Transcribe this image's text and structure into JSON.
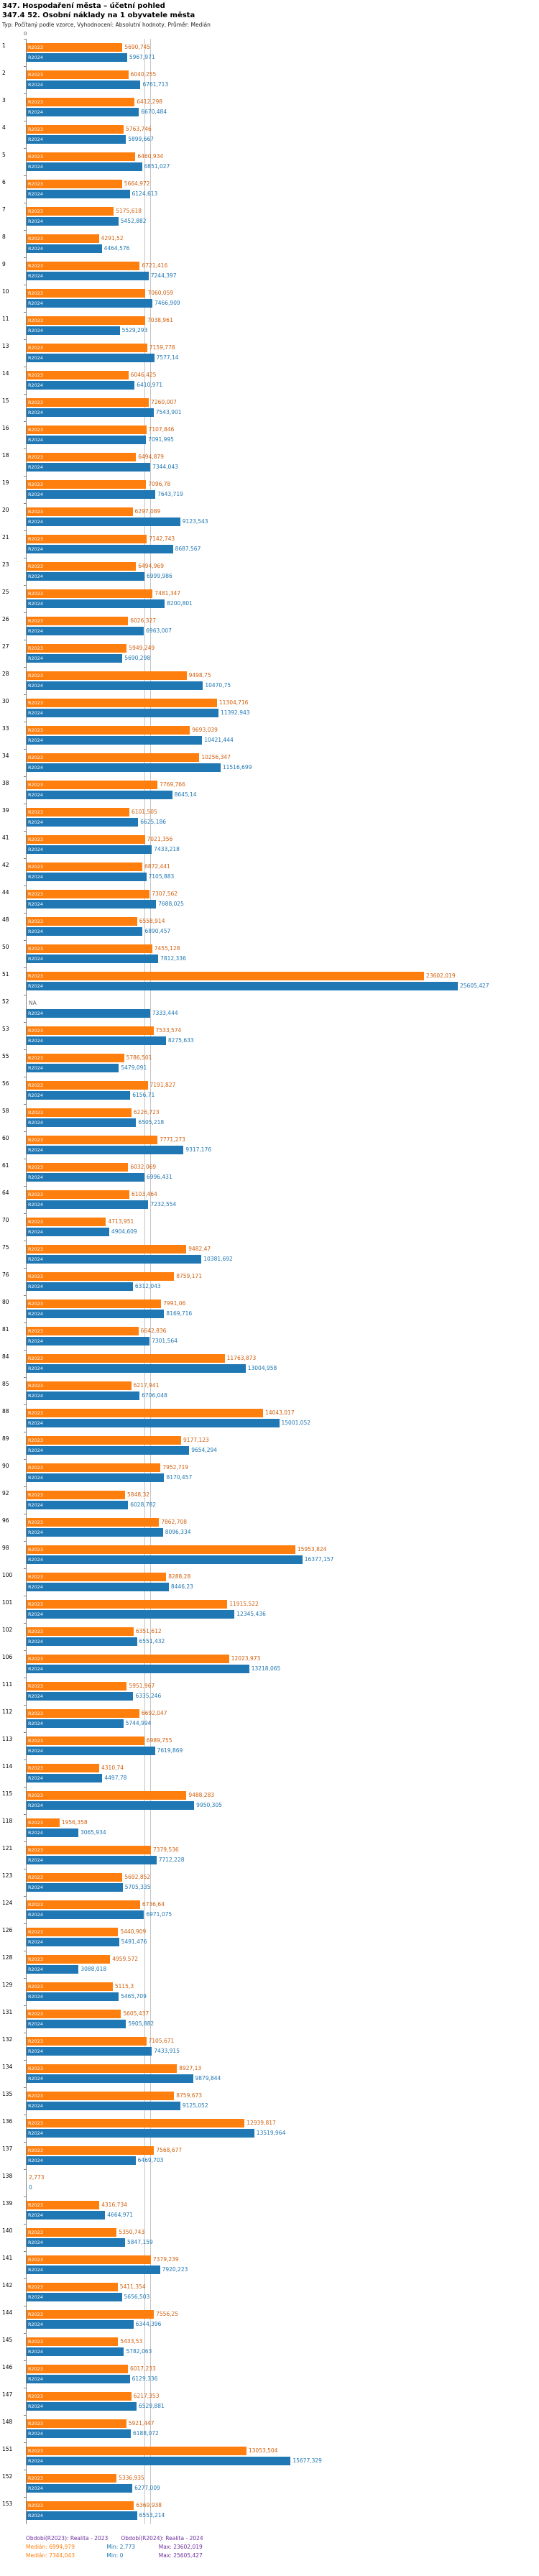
{
  "chart_data": {
    "type": "bar",
    "orientation": "horizontal",
    "title": "347. Hospodaření města – účetní pohled",
    "subtitle": "347.4 52. Osobní náklady na 1 obyvatele města",
    "meta": "Typ: Počítaný podle vzorce, Vyhodnocení: Absolutní hodnoty, Průměr: Medián",
    "zero_label": "0",
    "xlim": [
      0,
      25605.427
    ],
    "scale_max": 25605.427,
    "legend_position": "bottom",
    "series": [
      {
        "name": "R2023",
        "color": "#ff7f0e"
      },
      {
        "name": "R2024",
        "color": "#1f77b4"
      }
    ],
    "medians": {
      "R2023": 6994.979,
      "R2024": 7344.043
    },
    "rows": [
      {
        "rank": "1",
        "r2023": "5690,745",
        "r2024": "5967,971"
      },
      {
        "rank": "2",
        "r2023": "6040,255",
        "r2024": "6761,713"
      },
      {
        "rank": "3",
        "r2023": "6412,298",
        "r2024": "6670,484"
      },
      {
        "rank": "4",
        "r2023": "5763,746",
        "r2024": "5899,667"
      },
      {
        "rank": "5",
        "r2023": "6460,934",
        "r2024": "6851,027"
      },
      {
        "rank": "6",
        "r2023": "5664,972",
        "r2024": "6124,613"
      },
      {
        "rank": "7",
        "r2023": "5175,618",
        "r2024": "5452,882"
      },
      {
        "rank": "8",
        "r2023": "4291,52",
        "r2024": "4464,576"
      },
      {
        "rank": "9",
        "r2023": "6721,416",
        "r2024": "7244,397"
      },
      {
        "rank": "10",
        "r2023": "7060,059",
        "r2024": "7466,909"
      },
      {
        "rank": "11",
        "r2023": "7038,961",
        "r2024": "5529,293"
      },
      {
        "rank": "13",
        "r2023": "7159,778",
        "r2024": "7577,14"
      },
      {
        "rank": "14",
        "r2023": "6046,425",
        "r2024": "6410,971"
      },
      {
        "rank": "15",
        "r2023": "7260,007",
        "r2024": "7543,901"
      },
      {
        "rank": "16",
        "r2023": "7107,846",
        "r2024": "7091,995"
      },
      {
        "rank": "18",
        "r2023": "6494,879",
        "r2024": "7344,043"
      },
      {
        "rank": "19",
        "r2023": "7096,78",
        "r2024": "7643,719"
      },
      {
        "rank": "20",
        "r2023": "6297,089",
        "r2024": "9123,543"
      },
      {
        "rank": "21",
        "r2023": "7142,743",
        "r2024": "8687,567"
      },
      {
        "rank": "23",
        "r2023": "6494,969",
        "r2024": "6999,986"
      },
      {
        "rank": "25",
        "r2023": "7481,347",
        "r2024": "8200,801"
      },
      {
        "rank": "26",
        "r2023": "6026,327",
        "r2024": "6963,007"
      },
      {
        "rank": "27",
        "r2023": "5949,249",
        "r2024": "5690,298"
      },
      {
        "rank": "28",
        "r2023": "9498,75",
        "r2024": "10470,75"
      },
      {
        "rank": "30",
        "r2023": "11304,716",
        "r2024": "11392,943"
      },
      {
        "rank": "33",
        "r2023": "9693,039",
        "r2024": "10421,444"
      },
      {
        "rank": "34",
        "r2023": "10256,347",
        "r2024": "11516,699"
      },
      {
        "rank": "38",
        "r2023": "7769,766",
        "r2024": "8645,14"
      },
      {
        "rank": "39",
        "r2023": "6101,505",
        "r2024": "6625,186"
      },
      {
        "rank": "41",
        "r2023": "7021,356",
        "r2024": "7433,218"
      },
      {
        "rank": "42",
        "r2023": "6872,441",
        "r2024": "7105,883"
      },
      {
        "rank": "44",
        "r2023": "7307,562",
        "r2024": "7688,025"
      },
      {
        "rank": "48",
        "r2023": "6558,914",
        "r2024": "6890,457"
      },
      {
        "rank": "50",
        "r2023": "7455,128",
        "r2024": "7812,336"
      },
      {
        "rank": "51",
        "r2023": "23602,019",
        "r2024": "25605,427"
      },
      {
        "rank": "52",
        "r2023": "NA",
        "r2024": "7333,444"
      },
      {
        "rank": "53",
        "r2023": "7533,574",
        "r2024": "8275,633"
      },
      {
        "rank": "55",
        "r2023": "5786,501",
        "r2024": "5479,091"
      },
      {
        "rank": "56",
        "r2023": "7191,827",
        "r2024": "6156,71"
      },
      {
        "rank": "58",
        "r2023": "6226,723",
        "r2024": "6505,218"
      },
      {
        "rank": "60",
        "r2023": "7771,273",
        "r2024": "9317,176"
      },
      {
        "rank": "61",
        "r2023": "6032,069",
        "r2024": "6996,431"
      },
      {
        "rank": "64",
        "r2023": "6103,464",
        "r2024": "7232,554"
      },
      {
        "rank": "70",
        "r2023": "4713,951",
        "r2024": "4904,609"
      },
      {
        "rank": "75",
        "r2023": "9482,47",
        "r2024": "10381,692"
      },
      {
        "rank": "76",
        "r2023": "8759,171",
        "r2024": "6312,043"
      },
      {
        "rank": "80",
        "r2023": "7991,06",
        "r2024": "8169,716"
      },
      {
        "rank": "81",
        "r2023": "6642,836",
        "r2024": "7301,564"
      },
      {
        "rank": "84",
        "r2023": "11763,873",
        "r2024": "13004,958"
      },
      {
        "rank": "85",
        "r2023": "6217,941",
        "r2024": "6706,048"
      },
      {
        "rank": "88",
        "r2023": "14043,017",
        "r2024": "15001,052"
      },
      {
        "rank": "89",
        "r2023": "9177,123",
        "r2024": "9654,294"
      },
      {
        "rank": "90",
        "r2023": "7952,719",
        "r2024": "8170,457"
      },
      {
        "rank": "92",
        "r2023": "5848,32",
        "r2024": "6028,782"
      },
      {
        "rank": "96",
        "r2023": "7862,708",
        "r2024": "8096,334"
      },
      {
        "rank": "98",
        "r2023": "15953,824",
        "r2024": "16377,157"
      },
      {
        "rank": "100",
        "r2023": "8288,28",
        "r2024": "8446,23"
      },
      {
        "rank": "101",
        "r2023": "11915,522",
        "r2024": "12345,436"
      },
      {
        "rank": "102",
        "r2023": "6351,612",
        "r2024": "6551,432"
      },
      {
        "rank": "106",
        "r2023": "12023,973",
        "r2024": "13218,065"
      },
      {
        "rank": "111",
        "r2023": "5951,967",
        "r2024": "6335,246"
      },
      {
        "rank": "112",
        "r2023": "6692,047",
        "r2024": "5744,994"
      },
      {
        "rank": "113",
        "r2023": "6989,755",
        "r2024": "7619,869"
      },
      {
        "rank": "114",
        "r2023": "4310,74",
        "r2024": "4497,78"
      },
      {
        "rank": "115",
        "r2023": "9488,283",
        "r2024": "9950,305"
      },
      {
        "rank": "118",
        "r2023": "1956,358",
        "r2024": "3065,934"
      },
      {
        "rank": "121",
        "r2023": "7379,536",
        "r2024": "7712,228"
      },
      {
        "rank": "123",
        "r2023": "5692,852",
        "r2024": "5705,335"
      },
      {
        "rank": "124",
        "r2023": "6736,64",
        "r2024": "6971,075"
      },
      {
        "rank": "126",
        "r2023": "5440,909",
        "r2024": "5491,476"
      },
      {
        "rank": "128",
        "r2023": "4959,572",
        "r2024": "3088,018"
      },
      {
        "rank": "129",
        "r2023": "5115,3",
        "r2024": "5465,709"
      },
      {
        "rank": "131",
        "r2023": "5605,437",
        "r2024": "5905,882"
      },
      {
        "rank": "132",
        "r2023": "7105,671",
        "r2024": "7433,915"
      },
      {
        "rank": "134",
        "r2023": "8927,13",
        "r2024": "9879,844"
      },
      {
        "rank": "135",
        "r2023": "8759,673",
        "r2024": "9125,052"
      },
      {
        "rank": "136",
        "r2023": "12939,817",
        "r2024": "13519,964"
      },
      {
        "rank": "137",
        "r2023": "7568,677",
        "r2024": "6469,703"
      },
      {
        "rank": "138",
        "r2023": "2,773",
        "r2024": "0"
      },
      {
        "rank": "139",
        "r2023": "4316,734",
        "r2024": "4664,971"
      },
      {
        "rank": "140",
        "r2023": "5350,743",
        "r2024": "5847,159"
      },
      {
        "rank": "141",
        "r2023": "7379,239",
        "r2024": "7920,223"
      },
      {
        "rank": "142",
        "r2023": "5411,354",
        "r2024": "5656,503"
      },
      {
        "rank": "144",
        "r2023": "7556,25",
        "r2024": "6344,396"
      },
      {
        "rank": "145",
        "r2023": "5433,53",
        "r2024": "5782,063"
      },
      {
        "rank": "146",
        "r2023": "6017,233",
        "r2024": "6129,336"
      },
      {
        "rank": "147",
        "r2023": "6217,353",
        "r2024": "6529,881"
      },
      {
        "rank": "148",
        "r2023": "5921,447",
        "r2024": "6188,072"
      },
      {
        "rank": "151",
        "r2023": "13053,504",
        "r2024": "15677,329"
      },
      {
        "rank": "152",
        "r2023": "5336,935",
        "r2024": "6277,009"
      },
      {
        "rank": "153",
        "r2023": "6369,938",
        "r2024": "6553,214"
      }
    ]
  },
  "footer": {
    "period_2023": "Období(R2023): Realita - 2023",
    "period_2024": "Období(R2024): Realita - 2024",
    "median_2023": "Medián: 6994,979",
    "min_2023": "Min: 2,773",
    "max_2023": "Max: 23602,019",
    "median_2024": "Medián: 7344,043",
    "min_2024": "Min: 0",
    "max_2024": "Max: 25605,427"
  }
}
